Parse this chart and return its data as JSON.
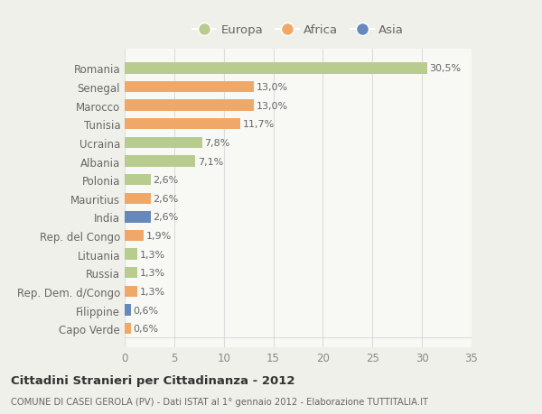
{
  "categories": [
    "Capo Verde",
    "Filippine",
    "Rep. Dem. d/Congo",
    "Russia",
    "Lituania",
    "Rep. del Congo",
    "India",
    "Mauritius",
    "Polonia",
    "Albania",
    "Ucraina",
    "Tunisia",
    "Marocco",
    "Senegal",
    "Romania"
  ],
  "values": [
    0.6,
    0.6,
    1.3,
    1.3,
    1.3,
    1.9,
    2.6,
    2.6,
    2.6,
    7.1,
    7.8,
    11.7,
    13.0,
    13.0,
    30.5
  ],
  "labels": [
    "0,6%",
    "0,6%",
    "1,3%",
    "1,3%",
    "1,3%",
    "1,9%",
    "2,6%",
    "2,6%",
    "2,6%",
    "7,1%",
    "7,8%",
    "11,7%",
    "13,0%",
    "13,0%",
    "30,5%"
  ],
  "colors": [
    "#f0a868",
    "#6688bb",
    "#f0a868",
    "#b8cc90",
    "#b8cc90",
    "#f0a868",
    "#6688bb",
    "#f0a868",
    "#b8cc90",
    "#b8cc90",
    "#b8cc90",
    "#f0a868",
    "#f0a868",
    "#f0a868",
    "#b8cc90"
  ],
  "legend_labels": [
    "Europa",
    "Africa",
    "Asia"
  ],
  "legend_colors": [
    "#b8cc90",
    "#f0a868",
    "#6688bb"
  ],
  "title": "Cittadini Stranieri per Cittadinanza - 2012",
  "subtitle": "COMUNE DI CASEI GEROLA (PV) - Dati ISTAT al 1° gennaio 2012 - Elaborazione TUTTITALIA.IT",
  "xlim": [
    0,
    35
  ],
  "xticks": [
    0,
    5,
    10,
    15,
    20,
    25,
    30,
    35
  ],
  "background_color": "#f0f0ea",
  "plot_bg_color": "#f8f8f5",
  "grid_color": "#dddddd"
}
